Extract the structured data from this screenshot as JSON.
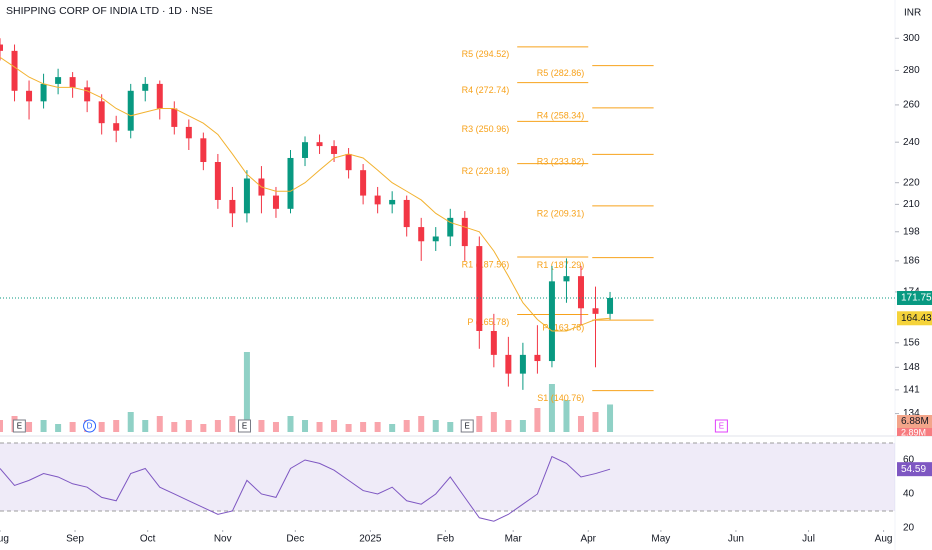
{
  "chart_data": {
    "type": "candlestick",
    "title": "SHIPPING CORP OF INDIA LTD · 1D · NSE",
    "currency": "INR",
    "log_scale": true,
    "ylim": [
      128.8,
      325.7
    ],
    "yticks": [
      134,
      141,
      148,
      156,
      174,
      186,
      198,
      210,
      220,
      240,
      260,
      280,
      300
    ],
    "xlim": [
      0,
      385
    ],
    "xticks": [
      {
        "value": 0,
        "label": "Aug"
      },
      {
        "value": 31,
        "label": "Sep"
      },
      {
        "value": 61,
        "label": "Oct"
      },
      {
        "value": 92,
        "label": "Nov"
      },
      {
        "value": 122,
        "label": "Dec"
      },
      {
        "value": 153,
        "label": "2025"
      },
      {
        "value": 184,
        "label": "Feb"
      },
      {
        "value": 212,
        "label": "Mar"
      },
      {
        "value": 243,
        "label": "Apr"
      },
      {
        "value": 273,
        "label": "May"
      },
      {
        "value": 304,
        "label": "Jun"
      },
      {
        "value": 334,
        "label": "Jul"
      },
      {
        "value": 365,
        "label": "Aug"
      }
    ],
    "up_color": "#089981",
    "down_color": "#f23645",
    "x": [
      0,
      6,
      12,
      18,
      24,
      30,
      36,
      42,
      48,
      54,
      60,
      66,
      72,
      78,
      84,
      90,
      96,
      102,
      108,
      114,
      120,
      126,
      132,
      138,
      144,
      150,
      156,
      162,
      168,
      174,
      180,
      186,
      192,
      198,
      204,
      210,
      216,
      222,
      228,
      234,
      240,
      246,
      252
    ],
    "open": [
      296,
      292,
      268,
      262,
      272,
      276,
      270,
      262,
      250,
      246,
      268,
      272,
      258,
      248,
      242,
      230,
      212,
      206,
      222,
      214,
      208,
      232,
      240,
      238,
      234,
      226,
      214,
      210,
      212,
      200,
      194,
      196,
      204,
      192,
      160,
      152,
      146,
      152,
      150,
      178,
      180,
      168,
      166
    ],
    "high": [
      300,
      296,
      274,
      278,
      281,
      279,
      274,
      266,
      254,
      272,
      276,
      274,
      262,
      252,
      245,
      234,
      218,
      226,
      228,
      218,
      236,
      243,
      244,
      241,
      237,
      229,
      218,
      216,
      214,
      204,
      200,
      208,
      207,
      196,
      166,
      158,
      156,
      162,
      184,
      187,
      184,
      176,
      174
    ],
    "low": [
      286,
      262,
      252,
      258,
      266,
      264,
      256,
      244,
      240,
      242,
      262,
      252,
      244,
      236,
      226,
      208,
      200,
      202,
      206,
      204,
      206,
      228,
      234,
      230,
      222,
      210,
      206,
      206,
      196,
      186,
      190,
      192,
      186,
      154,
      148,
      142,
      141,
      146,
      148,
      170,
      162,
      148,
      164
    ],
    "close": [
      292,
      268,
      262,
      272,
      276,
      270,
      262,
      250,
      246,
      268,
      272,
      258,
      248,
      242,
      230,
      212,
      206,
      222,
      214,
      208,
      232,
      240,
      238,
      234,
      226,
      214,
      210,
      212,
      200,
      194,
      196,
      204,
      192,
      160,
      152,
      146,
      152,
      150,
      178,
      180,
      168,
      166,
      171.75
    ],
    "last_price": {
      "value": 171.75,
      "label": "171.75"
    },
    "ma": {
      "color": "#f2b230",
      "values": [
        288,
        282,
        276,
        272,
        270,
        270,
        268,
        264,
        258,
        254,
        256,
        258,
        258,
        254,
        250,
        244,
        234,
        224,
        218,
        216,
        216,
        220,
        226,
        232,
        234,
        232,
        226,
        220,
        216,
        212,
        206,
        202,
        200,
        198,
        190,
        180,
        170,
        164,
        160,
        160,
        162,
        164,
        164.43
      ],
      "last": {
        "value": 164.43,
        "label": "164.43"
      }
    },
    "volume": {
      "values": [
        3,
        4,
        2.5,
        3,
        2,
        2.5,
        3,
        2.5,
        3,
        5,
        3,
        4,
        2.5,
        3,
        2,
        3,
        4,
        20,
        3,
        2.5,
        4,
        3,
        2.5,
        3,
        2,
        2.5,
        2.5,
        2,
        3,
        4,
        3,
        2.5,
        3,
        4,
        5,
        3,
        3,
        6,
        12,
        8,
        4,
        5,
        6.88
      ],
      "last": {
        "value": 6.88,
        "label": "6.88M"
      },
      "average": {
        "value": 2.89,
        "label": "2.89M"
      }
    },
    "pivot_color": "#f7a21b",
    "pivots": [
      {
        "from": 212,
        "to": 243,
        "levels": [
          {
            "label": "R5 (294.52)",
            "value": 294.52
          },
          {
            "label": "R4 (272.74)",
            "value": 272.74
          },
          {
            "label": "R3 (250.96)",
            "value": 250.96
          },
          {
            "label": "R2 (229.18)",
            "value": 229.18
          },
          {
            "label": "R1 (187.56)",
            "value": 187.56
          },
          {
            "label": "P (165.78)",
            "value": 165.78
          }
        ]
      },
      {
        "from": 243,
        "to": 270,
        "levels": [
          {
            "label": "R5 (282.86)",
            "value": 282.86
          },
          {
            "label": "R4 (258.34)",
            "value": 258.34
          },
          {
            "label": "R3 (233.82)",
            "value": 233.82
          },
          {
            "label": "R2 (209.31)",
            "value": 209.31
          },
          {
            "label": "R1 (187.29)",
            "value": 187.29
          },
          {
            "label": "P (163.78)",
            "value": 163.78
          },
          {
            "label": "S1 (140.76)",
            "value": 140.76
          }
        ]
      }
    ],
    "events": [
      {
        "label": "E",
        "day": 8
      },
      {
        "label": "D",
        "day": 37
      },
      {
        "label": "E",
        "day": 101
      },
      {
        "label": "E",
        "day": 193
      },
      {
        "label": "E",
        "day": 298
      }
    ],
    "rsi": {
      "color": "#7e57c2",
      "ylim": [
        9.4,
        74.1
      ],
      "yticks": [
        20,
        40,
        60
      ],
      "bands": [
        30,
        70
      ],
      "values": [
        55,
        45,
        48,
        52,
        50,
        46,
        44,
        38,
        36,
        52,
        55,
        44,
        40,
        36,
        32,
        28,
        30,
        48,
        40,
        38,
        55,
        60,
        58,
        54,
        48,
        42,
        40,
        44,
        36,
        34,
        40,
        50,
        38,
        26,
        24,
        28,
        34,
        40,
        62,
        58,
        50,
        52,
        54.59
      ],
      "last": {
        "value": 54.59,
        "label": "54.59"
      }
    }
  }
}
